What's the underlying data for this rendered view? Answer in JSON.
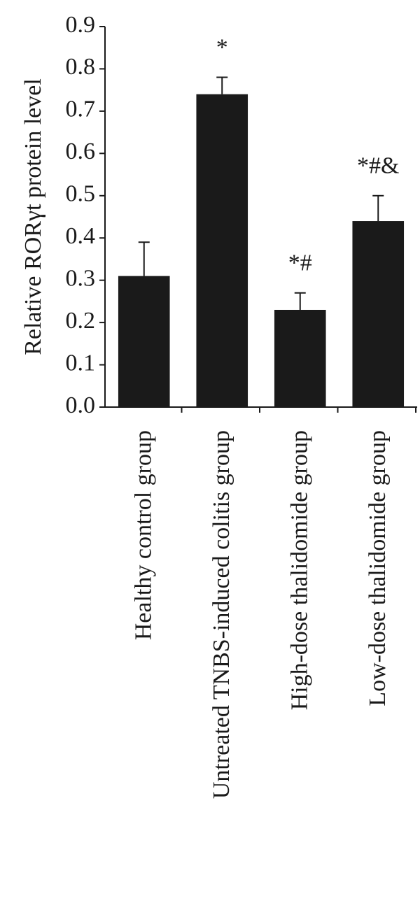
{
  "chart_data": {
    "type": "bar",
    "y_label": "Relative RORγt protein level",
    "categories": [
      "Healthy control group",
      "Untreated TNBS-induced colitis group",
      "High-dose thalidomide group",
      "Low-dose thalidomide group"
    ],
    "values": [
      0.31,
      0.74,
      0.23,
      0.44
    ],
    "errors": [
      0.08,
      0.04,
      0.04,
      0.06
    ],
    "annotations": [
      {
        "index": 1,
        "text": "*"
      },
      {
        "index": 2,
        "text": "*#"
      },
      {
        "index": 3,
        "text": "*#&"
      }
    ],
    "color": "#1a1a1a",
    "ylim": [
      0,
      0.9
    ],
    "yticks": [
      {
        "value": 0,
        "label": "0.0"
      },
      0.1,
      0.2,
      0.3,
      0.4,
      0.5,
      0.6,
      0.7,
      0.8,
      0.9
    ]
  }
}
